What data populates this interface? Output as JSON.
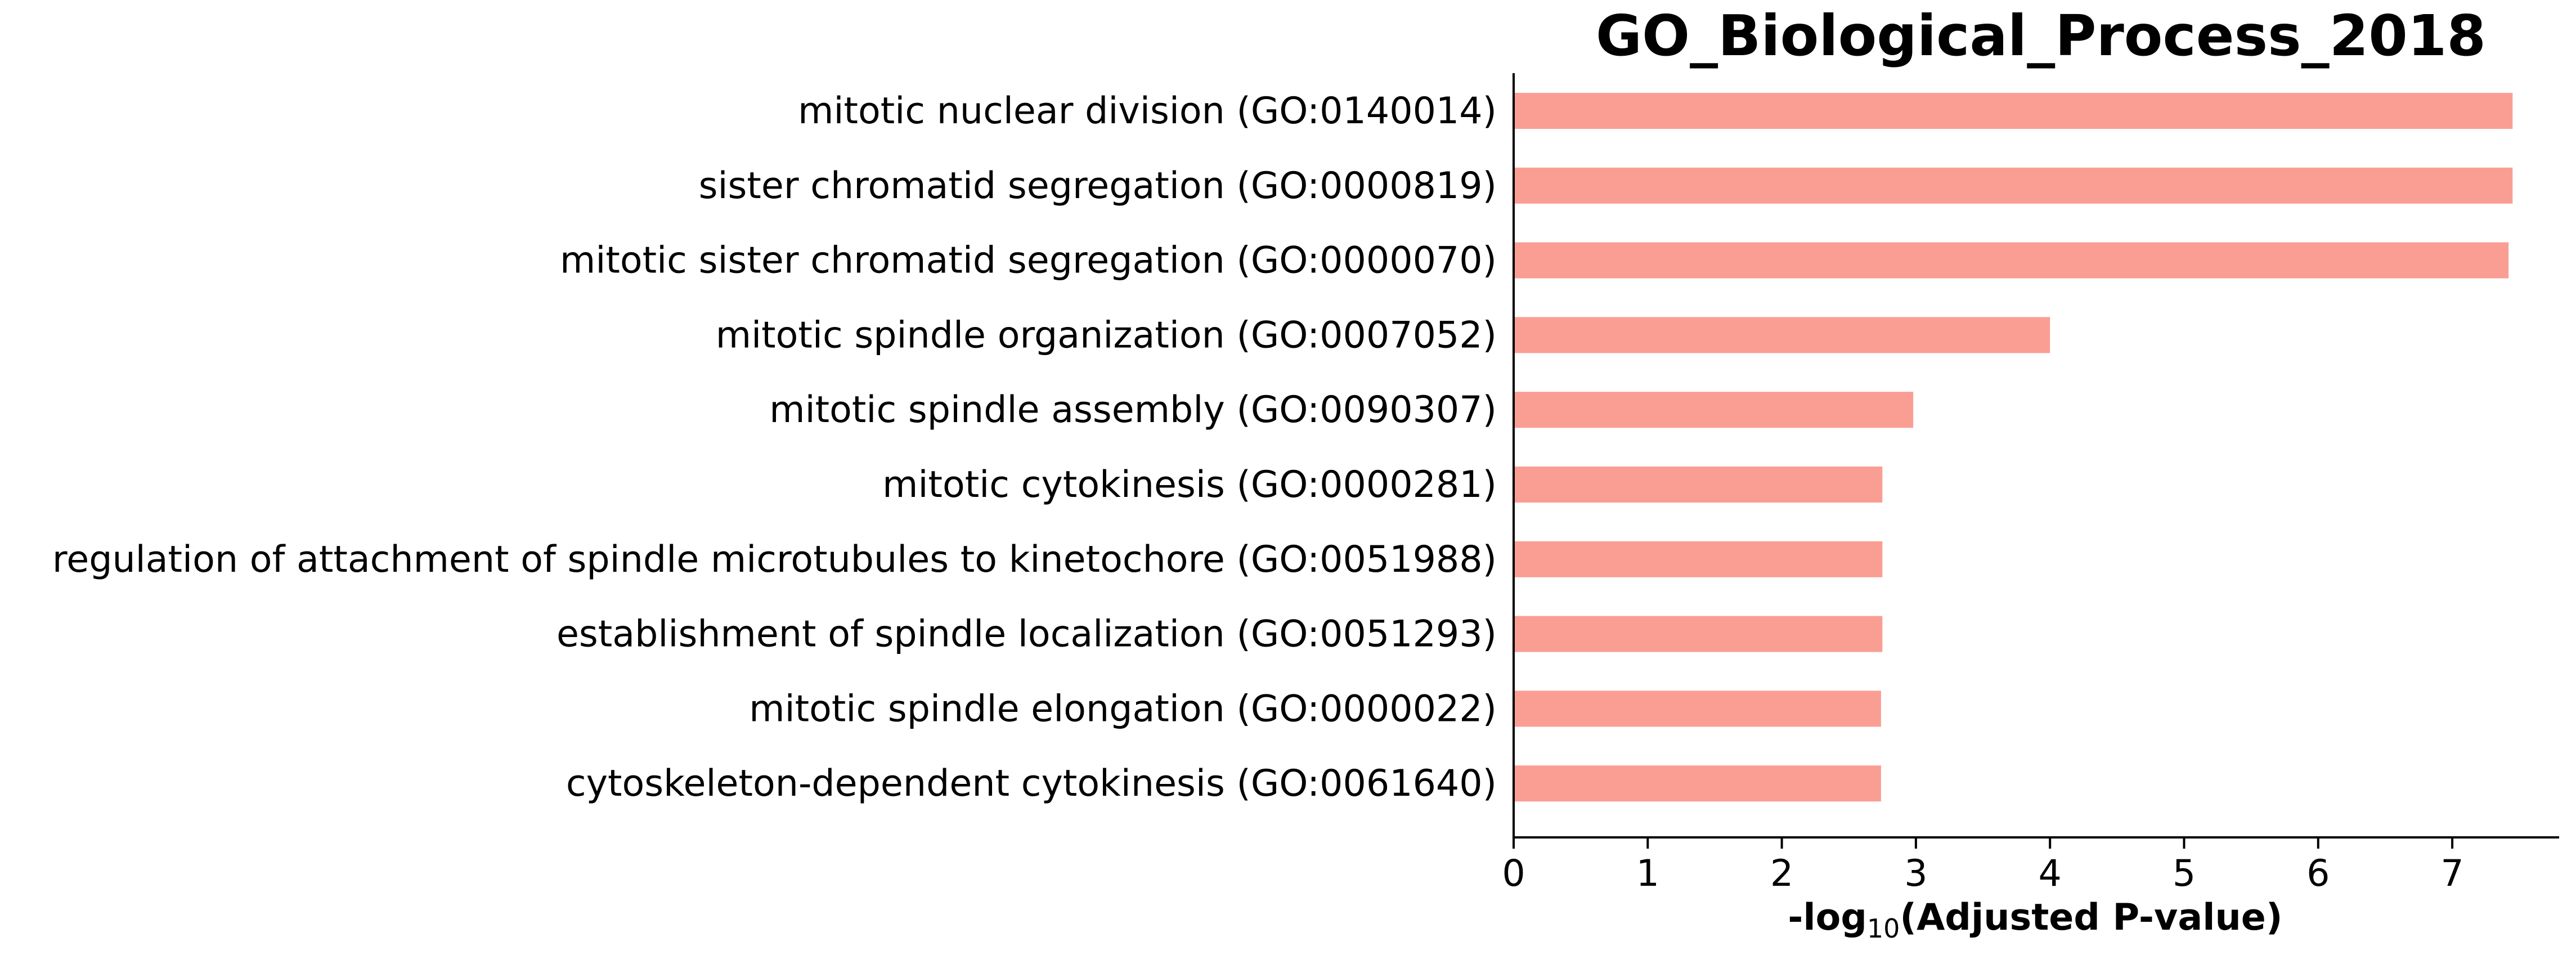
{
  "chart_data": {
    "type": "bar",
    "orientation": "horizontal",
    "title": "GO_Biological_Process_2018",
    "xlabel": {
      "prefix": "-log",
      "subscript": "10",
      "suffix": "(Adjusted P-value)"
    },
    "ylabel": "",
    "xlim": [
      0,
      7.8
    ],
    "xticks": [
      0,
      1,
      2,
      3,
      4,
      5,
      6,
      7
    ],
    "grid": false,
    "bar_color": "#fa9e94",
    "categories": [
      "mitotic nuclear division (GO:0140014)",
      "sister chromatid segregation (GO:0000819)",
      "mitotic sister chromatid segregation (GO:0000070)",
      "mitotic spindle organization (GO:0007052)",
      "mitotic spindle assembly (GO:0090307)",
      "mitotic cytokinesis (GO:0000281)",
      "regulation of attachment of spindle microtubules to kinetochore (GO:0051988)",
      "establishment of spindle localization (GO:0051293)",
      "mitotic spindle elongation (GO:0000022)",
      "cytoskeleton-dependent cytokinesis (GO:0061640)"
    ],
    "values": [
      7.45,
      7.45,
      7.42,
      4.0,
      2.98,
      2.75,
      2.75,
      2.75,
      2.74,
      2.74
    ]
  }
}
